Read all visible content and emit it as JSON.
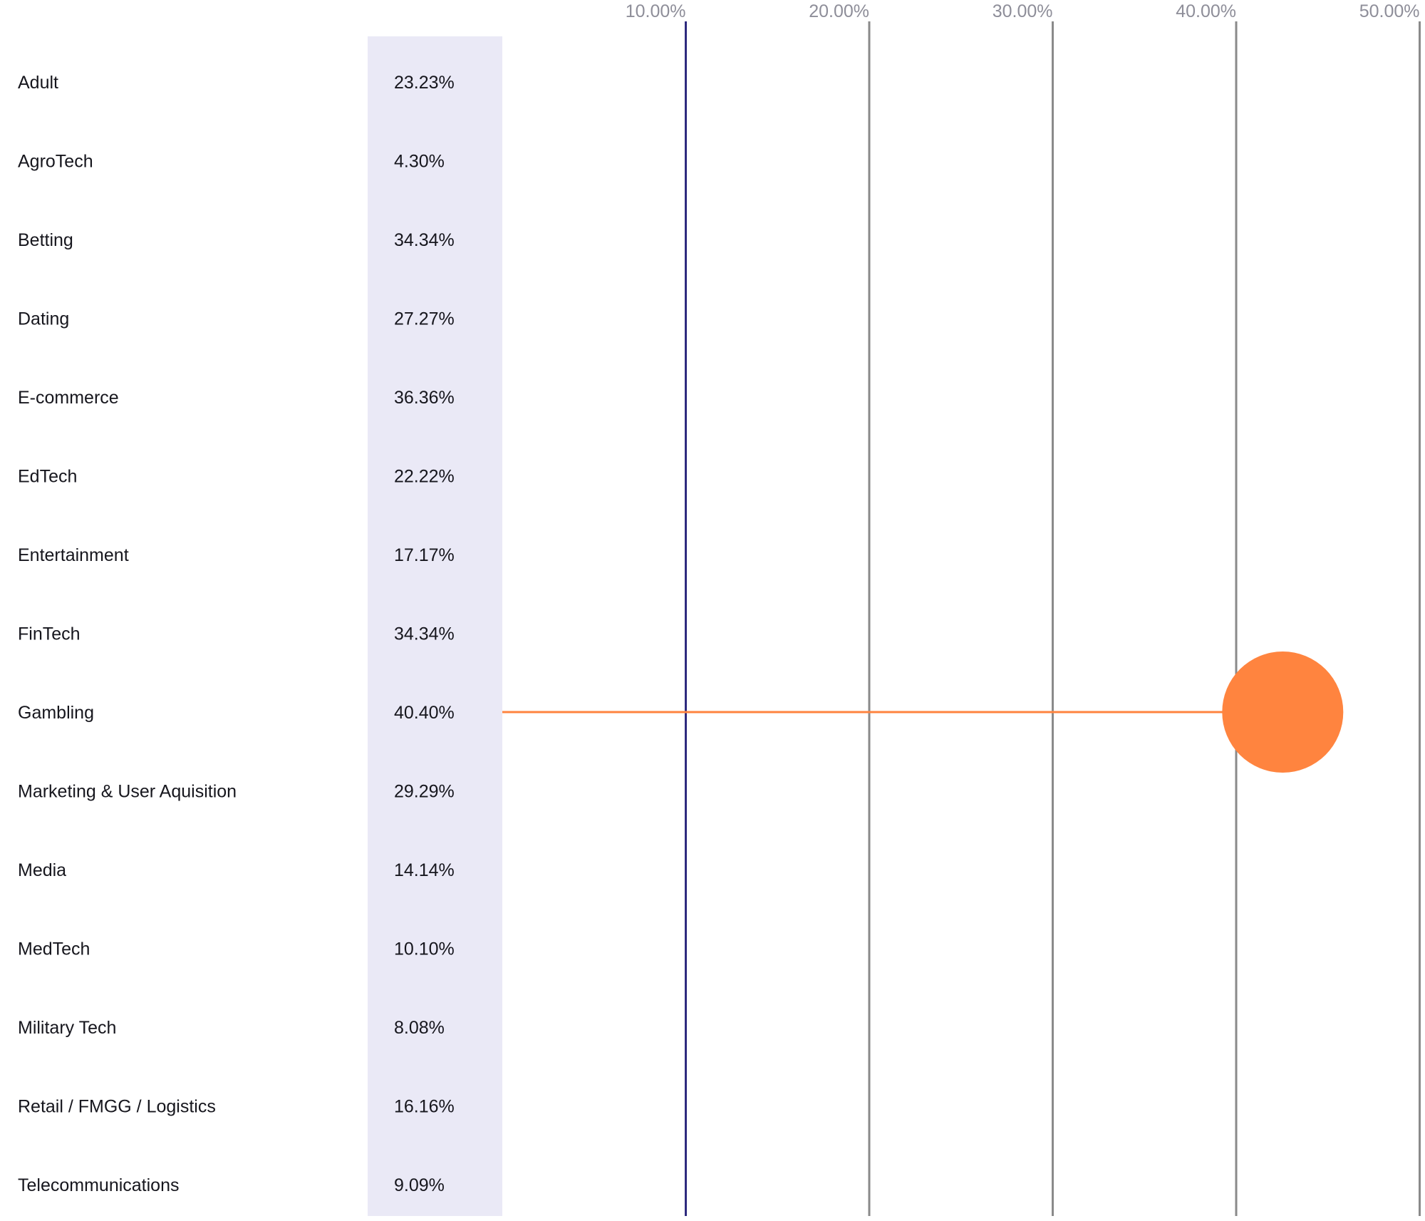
{
  "chart_data": {
    "type": "lollipop",
    "x_ticks": [
      {
        "value": 10,
        "label": "10.00%"
      },
      {
        "value": 20,
        "label": "20.00%"
      },
      {
        "value": 30,
        "label": "30.00%"
      },
      {
        "value": 40,
        "label": "40.00%"
      },
      {
        "value": 50,
        "label": "50.00%"
      }
    ],
    "xlim": [
      0,
      50
    ],
    "categories": [
      "Adult",
      "AgroTech",
      "Betting",
      "Dating",
      "E-commerce",
      "EdTech",
      "Entertainment",
      "FinTech",
      "Gambling",
      "Marketing & User Aquisition",
      "Media",
      "MedTech",
      "Military Tech",
      "Retail / FMGG / Logistics",
      "Telecommunications"
    ],
    "values": [
      23.23,
      4.3,
      34.34,
      27.27,
      36.36,
      22.22,
      17.17,
      34.34,
      40.4,
      29.29,
      14.14,
      10.1,
      8.08,
      16.16,
      9.09
    ],
    "value_labels": [
      "23.23%",
      "4.30%",
      "34.34%",
      "27.27%",
      "36.36%",
      "22.22%",
      "17.17%",
      "34.34%",
      "40.40%",
      "29.29%",
      "14.14%",
      "10.10%",
      "8.08%",
      "16.16%",
      "9.09%"
    ],
    "highlighted_category": "Gambling",
    "colors": {
      "highlight": "#FF843F",
      "gridline_first": "#2E2A7E",
      "gridline": "#8A8A8A",
      "value_column_bg": "#EAE9F6",
      "tick_label": "#8E8E99",
      "text": "#16161D"
    }
  }
}
